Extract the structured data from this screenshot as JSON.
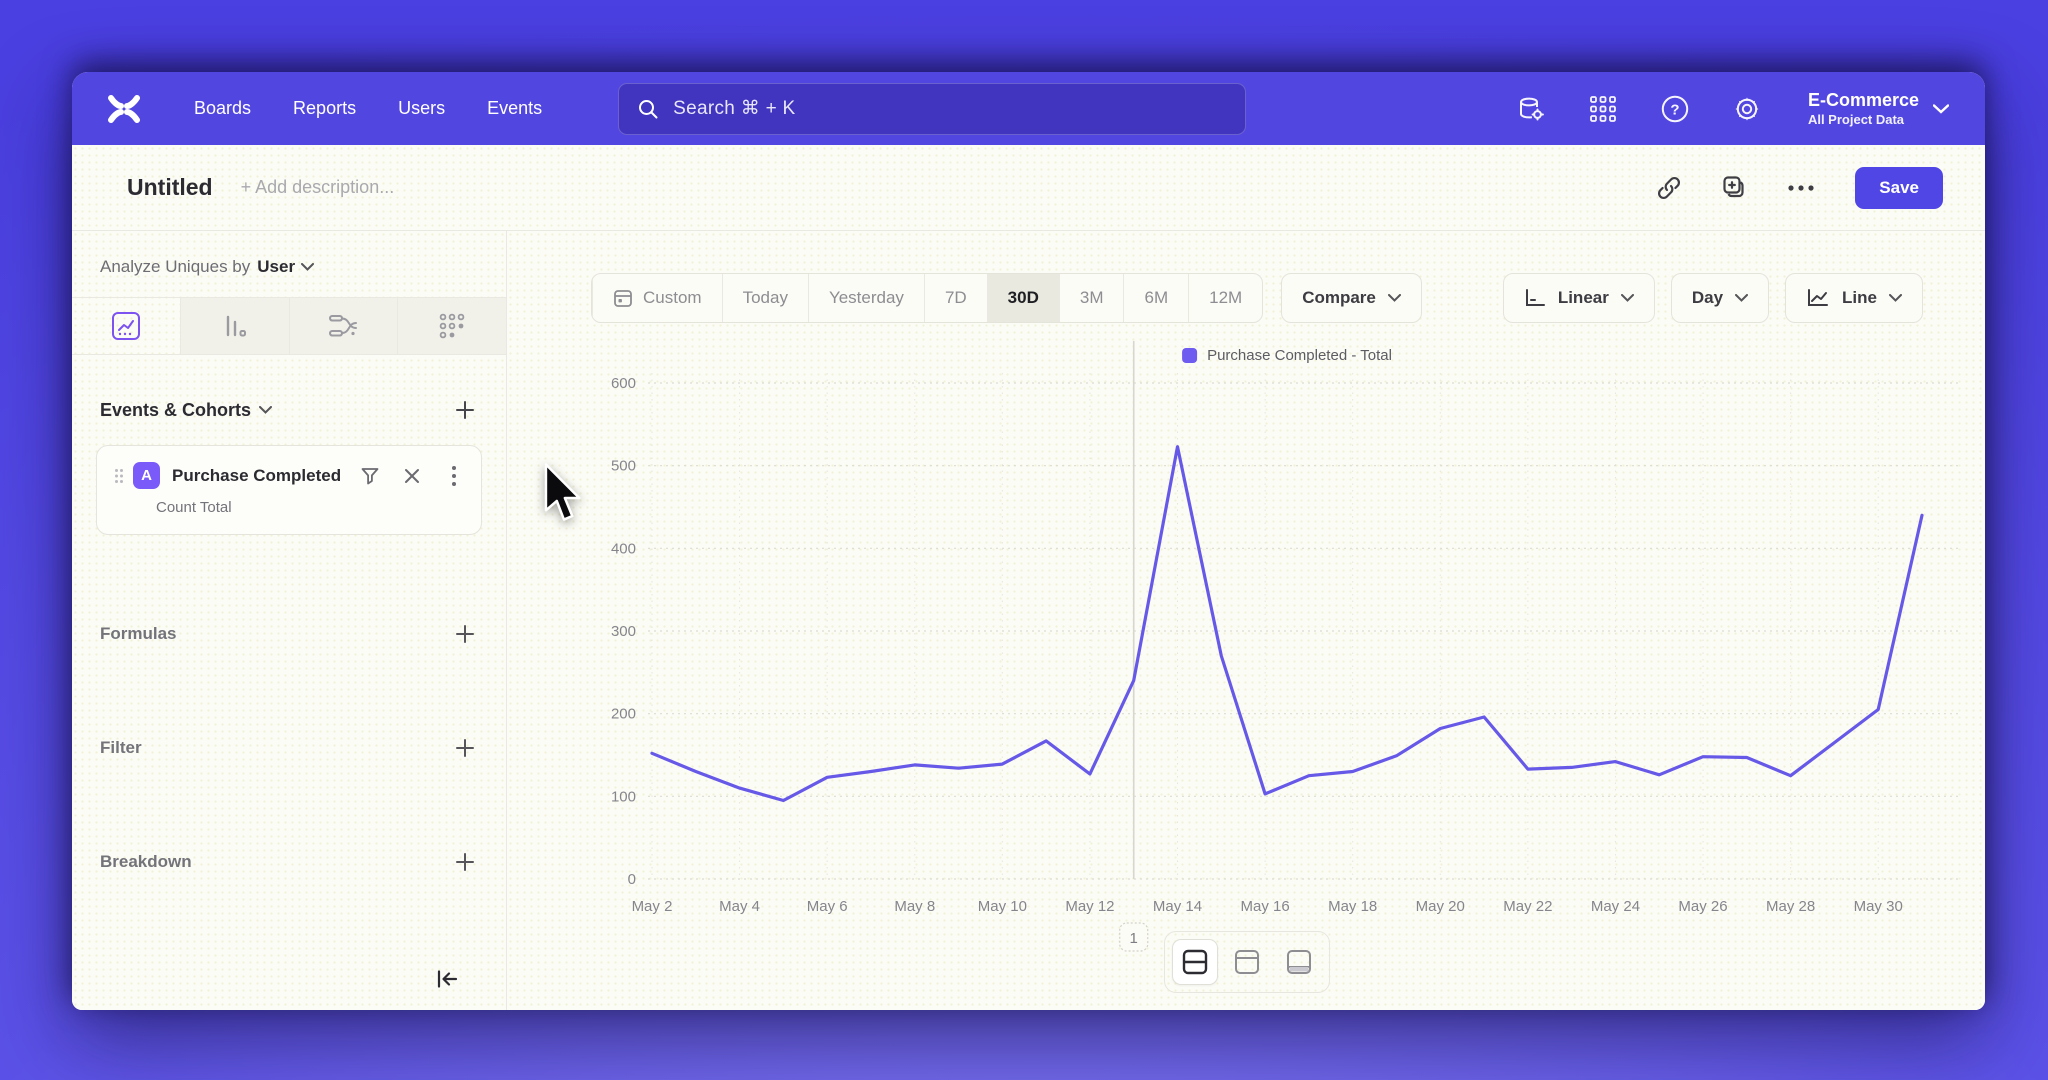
{
  "nav": {
    "items": [
      "Boards",
      "Reports",
      "Users",
      "Events"
    ],
    "search_placeholder": "Search  ⌘ + K",
    "help_glyph": "?",
    "project": {
      "name": "E-Commerce",
      "scope": "All Project Data"
    }
  },
  "titlebar": {
    "title": "Untitled",
    "description_placeholder": "+ Add description...",
    "save_label": "Save"
  },
  "sidebar": {
    "analyze_prefix": "Analyze Uniques by",
    "analyze_value": "User",
    "events_header": "Events & Cohorts",
    "event_card": {
      "badge": "A",
      "title": "Purchase Completed",
      "subtitle": "Count Total"
    },
    "sections": [
      {
        "label": "Formulas"
      },
      {
        "label": "Filter"
      },
      {
        "label": "Breakdown"
      }
    ]
  },
  "toolbar": {
    "ranges": [
      "Custom",
      "Today",
      "Yesterday",
      "7D",
      "30D",
      "3M",
      "6M",
      "12M"
    ],
    "selected_range": "30D",
    "compare_label": "Compare",
    "scale_label": "Linear",
    "interval_label": "Day",
    "chart_type_label": "Line"
  },
  "chart_data": {
    "type": "line",
    "legend": "Purchase Completed - Total",
    "line_color": "#6759e8",
    "x": [
      "May 2",
      "May 3",
      "May 4",
      "May 5",
      "May 6",
      "May 7",
      "May 8",
      "May 9",
      "May 10",
      "May 11",
      "May 12",
      "May 13",
      "May 14",
      "May 15",
      "May 16",
      "May 17",
      "May 18",
      "May 19",
      "May 20",
      "May 21",
      "May 22",
      "May 23",
      "May 24",
      "May 25",
      "May 26",
      "May 27",
      "May 28",
      "May 29",
      "May 30",
      "May 31"
    ],
    "series": [
      {
        "name": "Purchase Completed - Total",
        "values": [
          152,
          130,
          110,
          95,
          123,
          130,
          138,
          134,
          139,
          167,
          127,
          240,
          523,
          270,
          103,
          125,
          130,
          149,
          182,
          196,
          133,
          135,
          142,
          126,
          148,
          147,
          125,
          165,
          205,
          440
        ]
      }
    ],
    "ylim": [
      0,
      600
    ],
    "yticks": [
      0,
      100,
      200,
      300,
      400,
      500,
      600
    ],
    "x_tick_every": 2,
    "grid": "dotted",
    "legend_position": "top-center",
    "annotation": {
      "label": "1",
      "x_index": 11
    }
  }
}
